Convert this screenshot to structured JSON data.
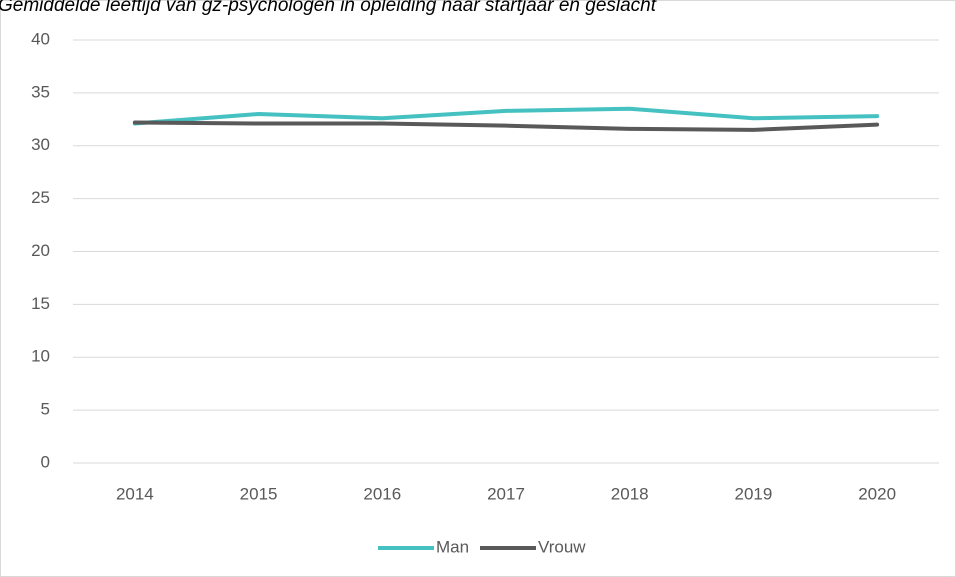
{
  "chart_data": {
    "type": "line",
    "title": "Gemiddelde leeftijd van gz-psychologen in opleiding naar startjaar en geslacht",
    "categories": [
      "2014",
      "2015",
      "2016",
      "2017",
      "2018",
      "2019",
      "2020"
    ],
    "series": [
      {
        "name": "Man",
        "color": "#45c1c1",
        "values": [
          32.1,
          33.0,
          32.6,
          33.3,
          33.5,
          32.6,
          32.8
        ]
      },
      {
        "name": "Vrouw",
        "color": "#595959",
        "values": [
          32.2,
          32.1,
          32.1,
          31.9,
          31.6,
          31.5,
          32.0
        ]
      }
    ],
    "ylim": [
      0,
      40
    ],
    "yticks": [
      0,
      5,
      10,
      15,
      20,
      25,
      30,
      35,
      40
    ],
    "grid": true,
    "legend": "bottom"
  }
}
